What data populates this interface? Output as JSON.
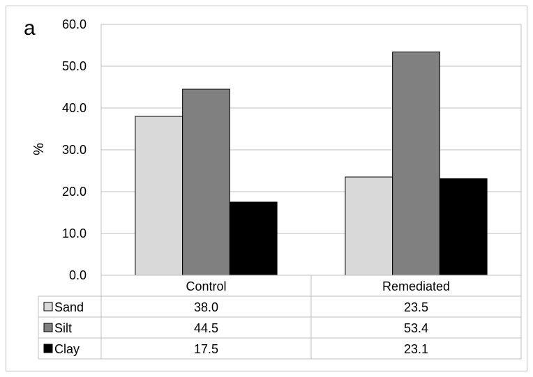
{
  "chart_data": {
    "type": "bar",
    "panel_label": "a",
    "title": "",
    "xlabel": "",
    "ylabel": "%",
    "ylim": [
      0,
      60
    ],
    "yticks": [
      "0.0",
      "10.0",
      "20.0",
      "30.0",
      "40.0",
      "50.0",
      "60.0"
    ],
    "grid": true,
    "legend_placement": "data-table",
    "categories": [
      "Control",
      "Remediated"
    ],
    "series": [
      {
        "name": "Sand",
        "values": [
          38.0,
          23.5
        ],
        "value_labels": [
          "38.0",
          "23.5"
        ],
        "color": "#d9d9d9"
      },
      {
        "name": "Silt",
        "values": [
          44.5,
          53.4
        ],
        "value_labels": [
          "44.5",
          "53.4"
        ],
        "color": "#808080"
      },
      {
        "name": "Clay",
        "values": [
          17.5,
          23.1
        ],
        "value_labels": [
          "17.5",
          "23.1"
        ],
        "color": "#000000"
      }
    ]
  }
}
